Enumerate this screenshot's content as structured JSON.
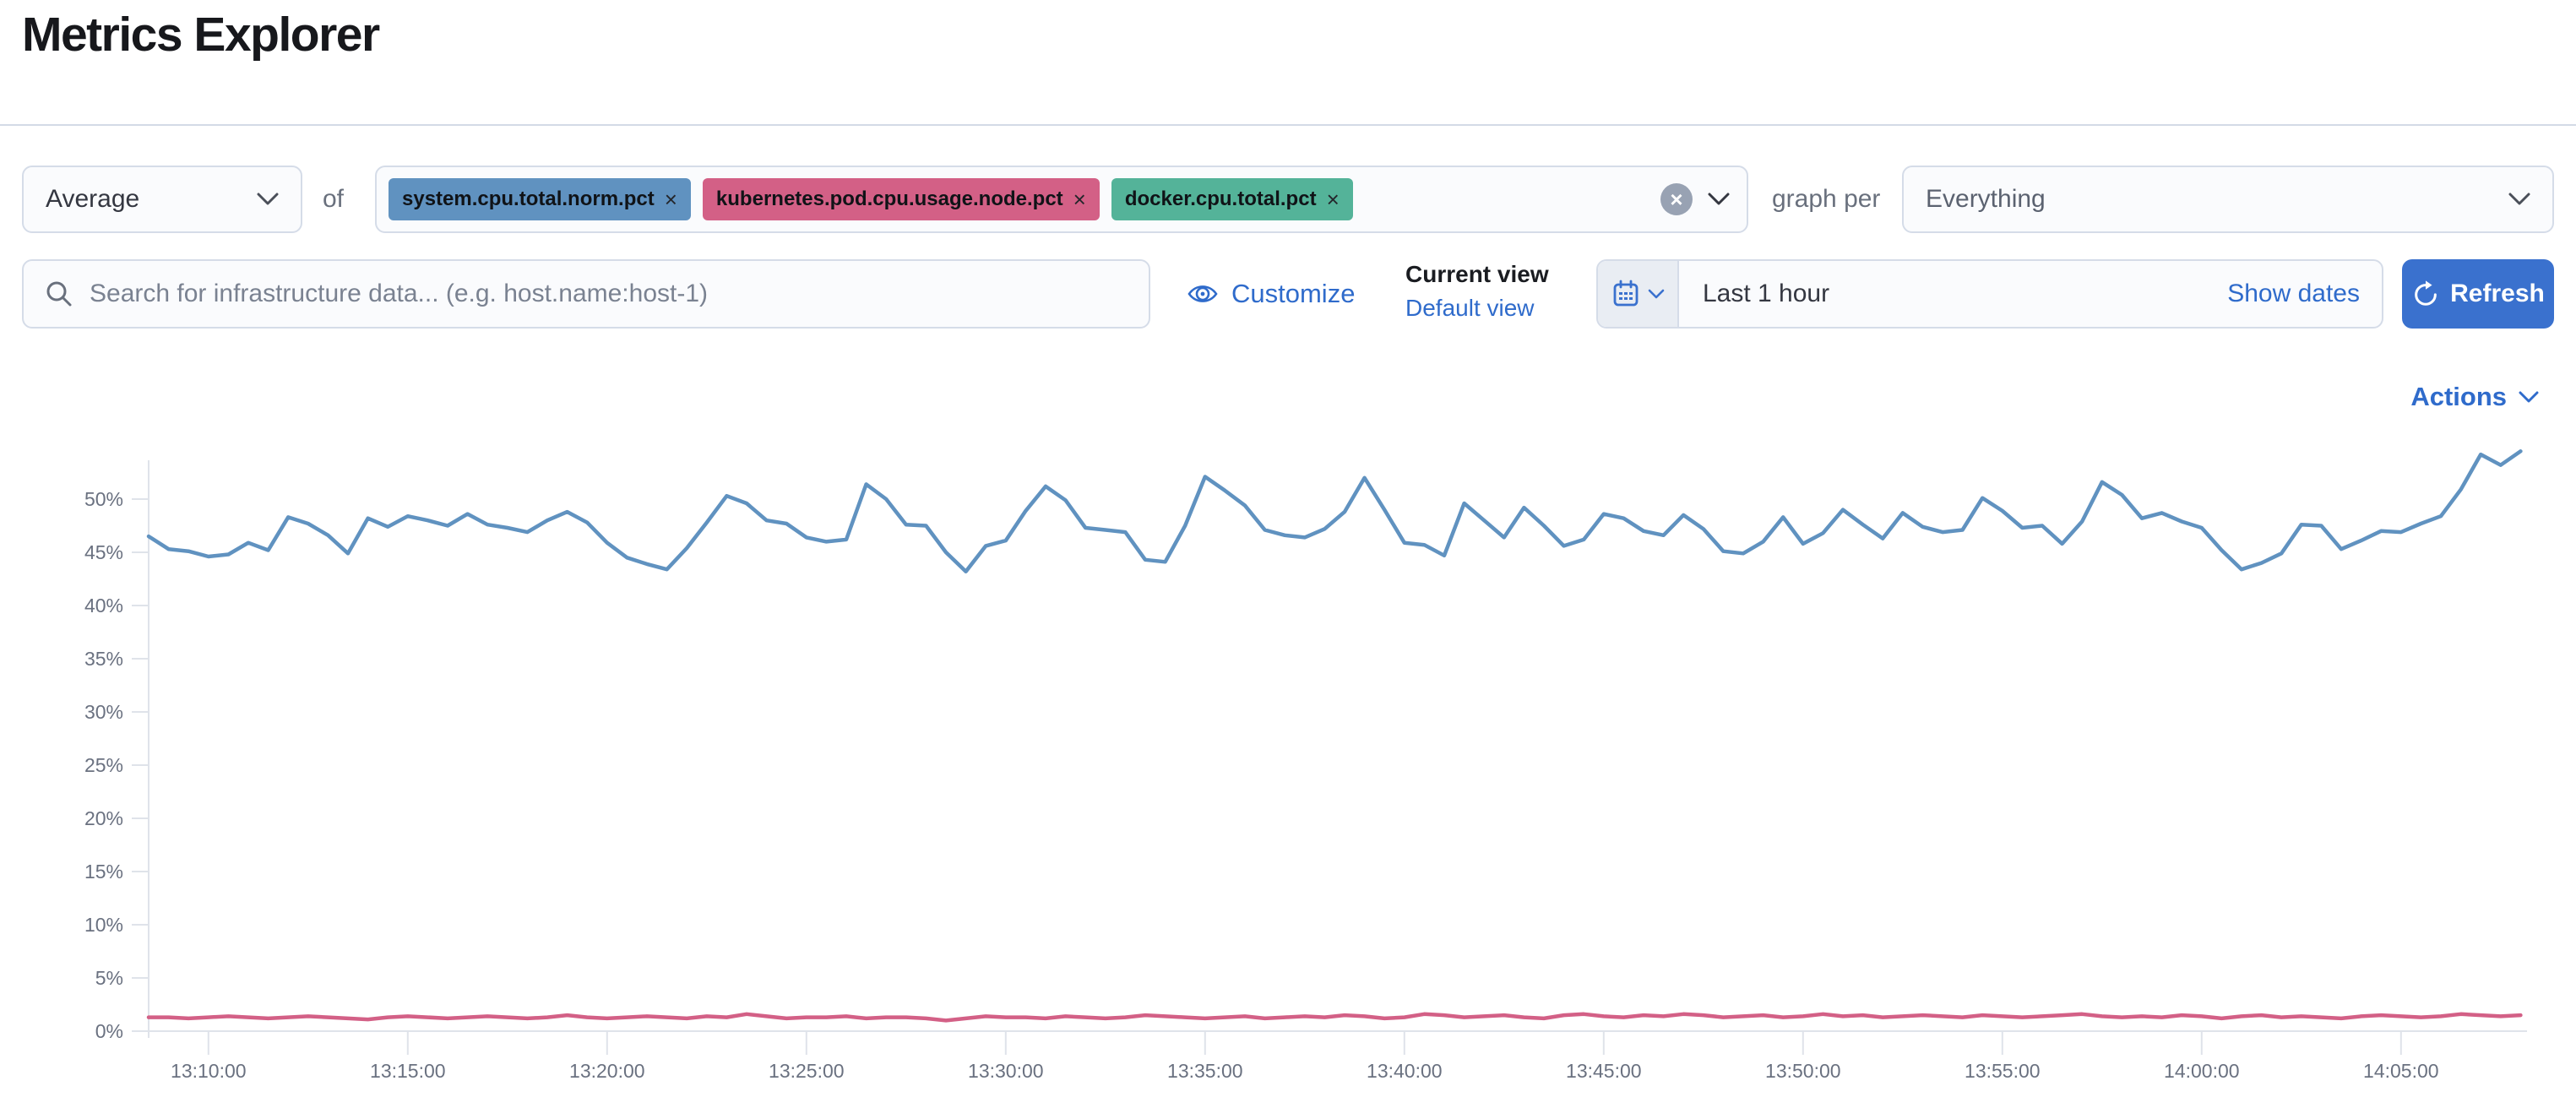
{
  "page": {
    "title": "Metrics Explorer"
  },
  "toolbar": {
    "aggregation": {
      "value": "Average"
    },
    "of_label": "of",
    "metrics": [
      {
        "label": "system.cpu.total.norm.pct",
        "color": "#6092C0"
      },
      {
        "label": "kubernetes.pod.cpu.usage.node.pct",
        "color": "#D36086"
      },
      {
        "label": "docker.cpu.total.pct",
        "color": "#54B399"
      }
    ],
    "clear_symbol": "×",
    "tag_close_symbol": "×",
    "graph_per_label": "graph per",
    "group_by": {
      "value": "Everything"
    }
  },
  "search": {
    "placeholder": "Search for infrastructure data... (e.g. host.name:host-1)"
  },
  "view_controls": {
    "customize_label": "Customize",
    "current_view_label": "Current view",
    "view_name": "Default view"
  },
  "time_picker": {
    "value": "Last 1 hour",
    "show_dates_label": "Show dates",
    "refresh_label": "Refresh"
  },
  "actions": {
    "label": "Actions"
  },
  "icons": {
    "search": "magnifier",
    "customize": "eye",
    "quick_select": "calendar",
    "refresh": "clockwise-arrow",
    "dropdowns": "chevron-down"
  },
  "colors": {
    "link_blue": "#2F6BCB",
    "button_blue": "#3A71CE",
    "border": "#D5DCE8",
    "axis_gray": "#DFE3EA",
    "axis_text": "#6A7180",
    "series_blue": "#6092C0",
    "series_pink": "#D36086"
  },
  "chart_data": {
    "type": "line",
    "title": "",
    "xlabel": "",
    "ylabel": "",
    "grid": false,
    "legend": "none",
    "ylim": [
      0,
      53.7
    ],
    "y_tick_labels": [
      "0%",
      "5%",
      "10%",
      "15%",
      "20%",
      "25%",
      "30%",
      "35%",
      "40%",
      "45%",
      "50%"
    ],
    "y_tick_values": [
      0,
      5,
      10,
      15,
      20,
      25,
      30,
      35,
      40,
      45,
      50
    ],
    "x_tick_labels": [
      "13:10:00",
      "13:15:00",
      "13:20:00",
      "13:25:00",
      "13:30:00",
      "13:35:00",
      "13:40:00",
      "13:45:00",
      "13:50:00",
      "13:55:00",
      "14:00:00",
      "14:05:00"
    ],
    "x_start": "13:08:30",
    "x_end": "14:08:00",
    "x_interval_seconds": 30,
    "unit": "%",
    "series": [
      {
        "name": "system.cpu.total.norm.pct (Average)",
        "color": "#6092C0",
        "values": [
          46.5,
          45.3,
          45.1,
          44.6,
          44.8,
          45.9,
          45.2,
          48.3,
          47.7,
          46.6,
          44.9,
          48.2,
          47.4,
          48.4,
          48.0,
          47.5,
          48.6,
          47.6,
          47.3,
          46.9,
          48.0,
          48.8,
          47.8,
          45.9,
          44.5,
          43.9,
          43.4,
          45.4,
          47.8,
          50.3,
          49.6,
          48.0,
          47.7,
          46.4,
          46.0,
          46.2,
          51.4,
          50.0,
          47.6,
          47.5,
          45.0,
          43.2,
          45.6,
          46.1,
          48.9,
          51.2,
          49.9,
          47.3,
          47.1,
          46.9,
          44.3,
          44.1,
          47.5,
          52.1,
          50.8,
          49.4,
          47.1,
          46.6,
          46.4,
          47.2,
          48.8,
          52.0,
          49.0,
          45.9,
          45.7,
          44.7,
          49.6,
          48.0,
          46.4,
          49.2,
          47.5,
          45.6,
          46.2,
          48.6,
          48.2,
          47.0,
          46.6,
          48.5,
          47.2,
          45.1,
          44.9,
          46.0,
          48.3,
          45.8,
          46.8,
          49.0,
          47.6,
          46.3,
          48.7,
          47.4,
          46.9,
          47.1,
          50.1,
          48.9,
          47.3,
          47.5,
          45.8,
          47.9,
          51.6,
          50.4,
          48.2,
          48.7,
          47.9,
          47.3,
          45.2,
          43.4,
          44.0,
          44.9,
          47.6,
          47.5,
          45.3,
          46.1,
          47.0,
          46.9,
          47.7,
          48.4,
          50.9,
          54.2,
          53.2,
          54.5
        ]
      },
      {
        "name": "kubernetes.pod.cpu.usage.node.pct (Average)",
        "color": "#D36086",
        "values": [
          1.3,
          1.3,
          1.2,
          1.3,
          1.4,
          1.3,
          1.2,
          1.3,
          1.4,
          1.3,
          1.2,
          1.1,
          1.3,
          1.4,
          1.3,
          1.2,
          1.3,
          1.4,
          1.3,
          1.2,
          1.3,
          1.5,
          1.3,
          1.2,
          1.3,
          1.4,
          1.3,
          1.2,
          1.4,
          1.3,
          1.6,
          1.4,
          1.2,
          1.3,
          1.3,
          1.4,
          1.2,
          1.3,
          1.3,
          1.2,
          1.0,
          1.2,
          1.4,
          1.3,
          1.3,
          1.2,
          1.4,
          1.3,
          1.2,
          1.3,
          1.5,
          1.4,
          1.3,
          1.2,
          1.3,
          1.4,
          1.2,
          1.3,
          1.4,
          1.3,
          1.5,
          1.4,
          1.2,
          1.3,
          1.6,
          1.5,
          1.3,
          1.4,
          1.5,
          1.3,
          1.2,
          1.5,
          1.6,
          1.4,
          1.3,
          1.5,
          1.4,
          1.6,
          1.5,
          1.3,
          1.4,
          1.5,
          1.3,
          1.4,
          1.6,
          1.4,
          1.5,
          1.3,
          1.4,
          1.5,
          1.4,
          1.3,
          1.5,
          1.4,
          1.3,
          1.4,
          1.5,
          1.6,
          1.4,
          1.3,
          1.4,
          1.3,
          1.5,
          1.4,
          1.2,
          1.4,
          1.5,
          1.3,
          1.4,
          1.3,
          1.2,
          1.4,
          1.5,
          1.4,
          1.3,
          1.4,
          1.6,
          1.5,
          1.4,
          1.5
        ]
      }
    ]
  }
}
